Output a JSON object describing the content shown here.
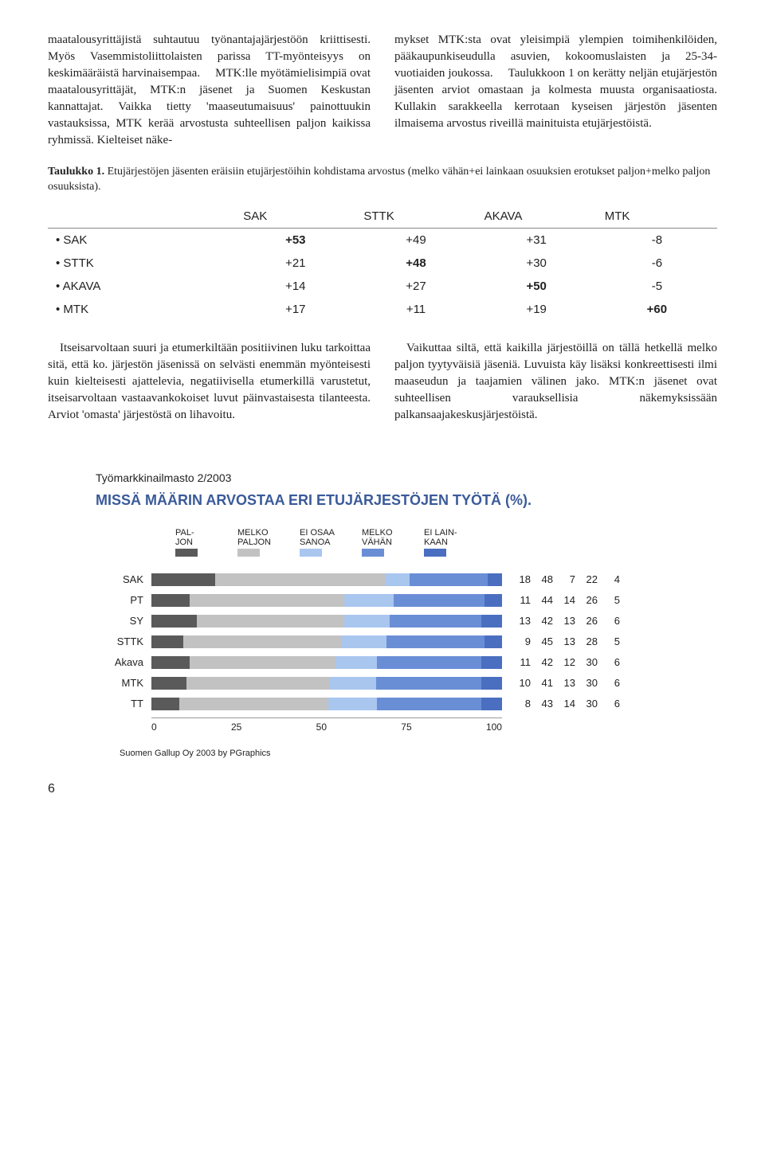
{
  "paragraphs": {
    "col_left": "maatalousyrittäjistä suhtautuu työnantajajärjestöön kriittisesti. Myös Vasemmistoliittolaisten parissa TT-myönteisyys on keskimääräistä harvinaisempaa.\n MTK:lle myötämielisimpiä ovat maatalousyrittäjät, MTK:n jäsenet ja Suomen Keskustan kannattajat. Vaikka tietty 'maaseutumaisuus' painottuukin vastauksissa, MTK kerää arvostusta suhteellisen paljon kaikissa ryhmissä. Kielteiset näke-",
    "col_right": "mykset MTK:sta ovat yleisimpiä ylempien toimihenkilöiden, pääkaupunkiseudulla asuvien, kokoomuslaisten ja 25-34-vuotiaiden joukossa.\n Taulukkoon 1 on kerätty neljän etujärjestön jäsenten arviot omastaan ja kolmesta muusta organisaatiosta. Kullakin sarakkeella kerrotaan kyseisen järjestön jäsenten ilmaisema arvostus riveillä mainituista etujärjestöistä.",
    "p2_left": " Itseisarvoltaan suuri ja etumerkiltään positiivinen luku tarkoittaa sitä, että ko. järjestön jäsenissä on selvästi enemmän myönteisesti kuin kielteisesti ajattelevia, negatiivisella etumerkillä varustetut, itseisarvoltaan vastaavankokoiset luvut päinvastaisesta tilanteesta. Arviot 'omasta' järjestöstä on lihavoitu.",
    "p2_right": " Vaikuttaa siltä, että kaikilla järjestöillä on tällä hetkellä melko paljon tyytyväisiä jäseniä. Luvuista käy lisäksi konkreettisesti ilmi maaseudun ja taajamien välinen jako. MTK:n jäsenet ovat suhteellisen varauksellisia näkemyksissään palkansaajakeskusjärjestöistä."
  },
  "table1": {
    "caption_bold": "Taulukko 1.",
    "caption_rest": " Etujärjestöjen jäsenten eräisiin etujärjestöihin kohdistama arvostus (melko vähän+ei lainkaan osuuksien erotukset paljon+melko paljon osuuksista).",
    "columns": [
      "",
      "SAK",
      "STTK",
      "AKAVA",
      "MTK"
    ],
    "rows": [
      {
        "label": "• SAK",
        "vals": [
          "+53",
          "+49",
          "+31",
          "-8"
        ],
        "bold_idx": 0
      },
      {
        "label": "• STTK",
        "vals": [
          "+21",
          "+48",
          "+30",
          "-6"
        ],
        "bold_idx": 1
      },
      {
        "label": "• AKAVA",
        "vals": [
          "+14",
          "+27",
          "+50",
          "-5"
        ],
        "bold_idx": 2
      },
      {
        "label": "• MTK",
        "vals": [
          "+17",
          "+11",
          "+19",
          "+60"
        ],
        "bold_idx": 3
      }
    ]
  },
  "chart": {
    "subtitle": "Työmarkkinailmasto 2/2003",
    "title": "MISSÄ MÄÄRIN ARVOSTAA ERI ETUJÄRJESTÖJEN TYÖTÄ (%).",
    "title_color": "#3a5a99",
    "legend": [
      {
        "label": "PAL-\nJON",
        "color": "#5a5a5a"
      },
      {
        "label": "MELKO\nPALJON",
        "color": "#c2c2c2"
      },
      {
        "label": "EI OSAA\nSANOA",
        "color": "#a9c6ef"
      },
      {
        "label": "MELKO\nVÄHÄN",
        "color": "#6a8ed6"
      },
      {
        "label": "EI LAIN-\nKAAN",
        "color": "#4a6fc1"
      }
    ],
    "colors": [
      "#5a5a5a",
      "#c2c2c2",
      "#a9c6ef",
      "#6a8ed6",
      "#4a6fc1"
    ],
    "rows": [
      {
        "label": "SAK",
        "vals": [
          18,
          48,
          7,
          22,
          4
        ]
      },
      {
        "label": "PT",
        "vals": [
          11,
          44,
          14,
          26,
          5
        ]
      },
      {
        "label": "SY",
        "vals": [
          13,
          42,
          13,
          26,
          6
        ]
      },
      {
        "label": "STTK",
        "vals": [
          9,
          45,
          13,
          28,
          5
        ]
      },
      {
        "label": "Akava",
        "vals": [
          11,
          42,
          12,
          30,
          6
        ]
      },
      {
        "label": "MTK",
        "vals": [
          10,
          41,
          13,
          30,
          6
        ]
      },
      {
        "label": "TT",
        "vals": [
          8,
          43,
          14,
          30,
          6
        ]
      }
    ],
    "xticks": [
      0,
      25,
      50,
      75,
      100
    ],
    "footnote": "Suomen Gallup Oy 2003 by PGraphics"
  },
  "page_number": "6"
}
